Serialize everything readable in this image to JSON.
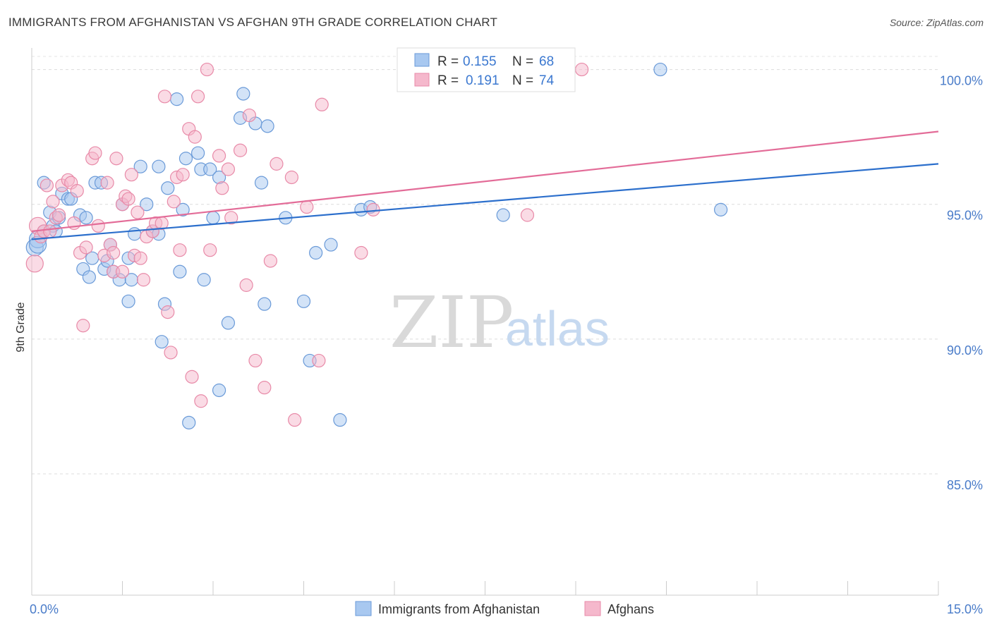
{
  "title": "IMMIGRANTS FROM AFGHANISTAN VS AFGHAN 9TH GRADE CORRELATION CHART",
  "source": "Source: ZipAtlas.com",
  "watermark": {
    "zip": "ZIP",
    "atlas": "atlas"
  },
  "legend": {
    "r_label": "R =",
    "n_label": "N =",
    "items": [
      {
        "r": "0.155",
        "n": "68"
      },
      {
        "r": "0.191",
        "n": "74"
      }
    ]
  },
  "colors": {
    "blue_fill": "#a8c8f0",
    "blue_stroke": "#6a9ad8",
    "blue_line": "#2c6fcc",
    "pink_fill": "#f5b8cc",
    "pink_stroke": "#e88aa8",
    "pink_line": "#e36c98"
  },
  "chart_data": {
    "type": "scatter",
    "xlabel": "",
    "ylabel": "9th Grade",
    "xlim": [
      0,
      15
    ],
    "ylim": [
      80.5,
      100.8
    ],
    "x_tick_labels": [
      {
        "v": 0,
        "label": "0.0%"
      },
      {
        "v": 15,
        "label": "15.0%"
      }
    ],
    "y_ticks": [
      {
        "v": 100,
        "label": "100.0%"
      },
      {
        "v": 95,
        "label": "95.0%"
      },
      {
        "v": 90,
        "label": "90.0%"
      },
      {
        "v": 85,
        "label": "85.0%"
      }
    ],
    "grid": true,
    "series": [
      {
        "name": "Immigrants from Afghanistan",
        "color": "blue",
        "trend": [
          [
            0,
            93.7
          ],
          [
            15,
            96.5
          ]
        ],
        "points": [
          [
            0.05,
            93.4
          ],
          [
            0.1,
            93.7
          ],
          [
            0.2,
            94.0
          ],
          [
            0.2,
            95.8
          ],
          [
            0.3,
            94.7
          ],
          [
            0.35,
            94.2
          ],
          [
            0.4,
            94.0
          ],
          [
            0.45,
            94.5
          ],
          [
            0.5,
            95.4
          ],
          [
            0.6,
            95.2
          ],
          [
            0.65,
            95.2
          ],
          [
            0.8,
            94.6
          ],
          [
            0.9,
            94.5
          ],
          [
            0.85,
            92.6
          ],
          [
            0.95,
            92.3
          ],
          [
            1.0,
            93.0
          ],
          [
            1.05,
            95.8
          ],
          [
            1.15,
            95.8
          ],
          [
            1.2,
            92.6
          ],
          [
            1.25,
            92.9
          ],
          [
            1.3,
            93.5
          ],
          [
            1.35,
            92.5
          ],
          [
            1.45,
            92.2
          ],
          [
            1.5,
            95.0
          ],
          [
            1.6,
            93.0
          ],
          [
            1.6,
            91.4
          ],
          [
            1.65,
            92.2
          ],
          [
            1.7,
            93.9
          ],
          [
            1.8,
            96.4
          ],
          [
            1.9,
            95.0
          ],
          [
            2.0,
            94.0
          ],
          [
            2.1,
            93.9
          ],
          [
            2.1,
            96.4
          ],
          [
            2.15,
            89.9
          ],
          [
            2.2,
            91.3
          ],
          [
            2.25,
            95.6
          ],
          [
            2.4,
            98.9
          ],
          [
            2.45,
            92.5
          ],
          [
            2.5,
            94.8
          ],
          [
            2.55,
            96.7
          ],
          [
            2.6,
            86.9
          ],
          [
            2.75,
            96.9
          ],
          [
            2.8,
            96.3
          ],
          [
            2.85,
            92.2
          ],
          [
            2.95,
            96.3
          ],
          [
            3.0,
            94.5
          ],
          [
            3.1,
            96.0
          ],
          [
            3.1,
            88.1
          ],
          [
            3.25,
            90.6
          ],
          [
            3.45,
            98.2
          ],
          [
            3.5,
            99.1
          ],
          [
            3.7,
            98.0
          ],
          [
            3.8,
            95.8
          ],
          [
            3.85,
            91.3
          ],
          [
            3.9,
            97.9
          ],
          [
            4.2,
            94.5
          ],
          [
            4.5,
            91.4
          ],
          [
            4.6,
            89.2
          ],
          [
            4.7,
            93.2
          ],
          [
            4.95,
            93.5
          ],
          [
            5.1,
            87.0
          ],
          [
            5.45,
            94.8
          ],
          [
            5.6,
            94.9
          ],
          [
            6.9,
            100.0
          ],
          [
            7.8,
            94.6
          ],
          [
            10.4,
            100.0
          ],
          [
            11.4,
            94.8
          ],
          [
            0.1,
            93.5
          ]
        ]
      },
      {
        "name": "Afghans",
        "color": "pink",
        "trend": [
          [
            0,
            94.0
          ],
          [
            15,
            97.7
          ]
        ],
        "points": [
          [
            0.05,
            92.8
          ],
          [
            0.1,
            94.2
          ],
          [
            0.15,
            93.8
          ],
          [
            0.2,
            94.0
          ],
          [
            0.25,
            95.7
          ],
          [
            0.35,
            95.1
          ],
          [
            0.4,
            94.5
          ],
          [
            0.45,
            94.6
          ],
          [
            0.5,
            95.7
          ],
          [
            0.6,
            95.9
          ],
          [
            0.65,
            95.8
          ],
          [
            0.7,
            94.3
          ],
          [
            0.75,
            95.5
          ],
          [
            0.8,
            93.2
          ],
          [
            0.85,
            90.5
          ],
          [
            0.9,
            93.4
          ],
          [
            1.0,
            96.7
          ],
          [
            1.05,
            96.9
          ],
          [
            1.1,
            94.2
          ],
          [
            1.2,
            93.1
          ],
          [
            1.25,
            95.8
          ],
          [
            1.3,
            93.5
          ],
          [
            1.35,
            92.5
          ],
          [
            1.35,
            93.2
          ],
          [
            1.4,
            96.7
          ],
          [
            1.5,
            95.0
          ],
          [
            1.5,
            92.5
          ],
          [
            1.55,
            95.3
          ],
          [
            1.6,
            95.2
          ],
          [
            1.65,
            96.1
          ],
          [
            1.7,
            93.1
          ],
          [
            1.75,
            94.7
          ],
          [
            1.8,
            93.0
          ],
          [
            1.85,
            92.2
          ],
          [
            1.9,
            93.8
          ],
          [
            2.0,
            94.0
          ],
          [
            2.05,
            94.3
          ],
          [
            2.15,
            94.3
          ],
          [
            2.2,
            99.0
          ],
          [
            2.25,
            91.0
          ],
          [
            2.3,
            89.5
          ],
          [
            2.35,
            95.1
          ],
          [
            2.4,
            96.0
          ],
          [
            2.45,
            93.3
          ],
          [
            2.5,
            96.1
          ],
          [
            2.6,
            97.8
          ],
          [
            2.65,
            88.6
          ],
          [
            2.7,
            97.5
          ],
          [
            2.75,
            99.0
          ],
          [
            2.8,
            87.7
          ],
          [
            2.9,
            100.0
          ],
          [
            2.95,
            93.3
          ],
          [
            3.1,
            96.8
          ],
          [
            3.15,
            95.6
          ],
          [
            3.25,
            96.3
          ],
          [
            3.3,
            94.5
          ],
          [
            3.45,
            97.0
          ],
          [
            3.55,
            92.0
          ],
          [
            3.6,
            98.3
          ],
          [
            3.7,
            89.2
          ],
          [
            3.85,
            88.2
          ],
          [
            3.95,
            92.9
          ],
          [
            4.05,
            96.5
          ],
          [
            4.3,
            96.0
          ],
          [
            4.35,
            87.0
          ],
          [
            4.55,
            94.9
          ],
          [
            4.75,
            89.2
          ],
          [
            4.8,
            98.7
          ],
          [
            5.45,
            93.2
          ],
          [
            5.65,
            94.8
          ],
          [
            7.4,
            100.0
          ],
          [
            8.2,
            94.6
          ],
          [
            9.1,
            100.0
          ],
          [
            0.3,
            94.0
          ]
        ]
      }
    ]
  },
  "bottom_legend": [
    "Immigrants from Afghanistan",
    "Afghans"
  ]
}
